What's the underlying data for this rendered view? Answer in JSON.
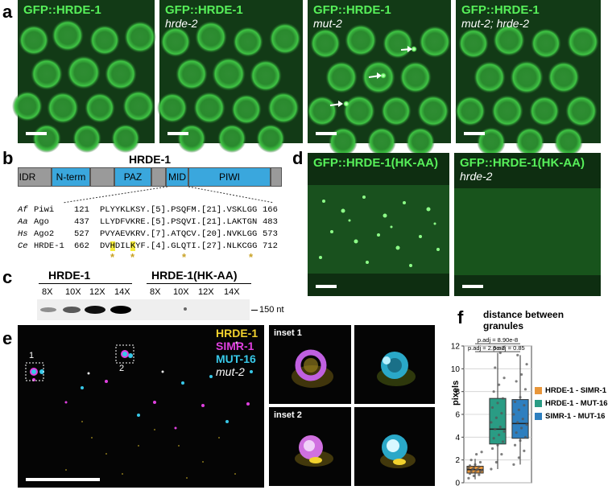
{
  "panels": {
    "a": {
      "letter": "a",
      "images": [
        {
          "line1": "GFP::HRDE-1",
          "line2": ""
        },
        {
          "line1": "GFP::HRDE-1",
          "line2": "hrde-2"
        },
        {
          "line1": "GFP::HRDE-1",
          "line2": "mut-2"
        },
        {
          "line1": "GFP::HRDE-1",
          "line2": "mut-2; hrde-2"
        }
      ]
    },
    "b": {
      "letter": "b",
      "protein_name": "HRDE-1",
      "domains": [
        "IDR",
        "N-term",
        "PAZ",
        "MID",
        "PIWI"
      ],
      "alignment": [
        {
          "species": "Af",
          "protein": "Piwi",
          "start": "121",
          "seq": "PLYYKLKSY.[5].PSQFM.[21].VSKLGG",
          "end": "166"
        },
        {
          "species": "Aa",
          "protein": "Ago",
          "start": "437",
          "seq": "LLYDFVKRE.[5].PSQVI.[21].LAKTGN",
          "end": "483"
        },
        {
          "species": "Hs",
          "protein": "Ago2",
          "start": "527",
          "seq": "PVYAEVKRV.[7].ATQCV.[20].NVKLGG",
          "end": "573"
        },
        {
          "species": "Ce",
          "protein": "HRDE-1",
          "start": "662",
          "seq_pre": "DV",
          "hl1": "H",
          "seq_mid": "DIL",
          "hl2": "K",
          "seq_post": "YF.[4].GLQTI.[27].NLKCGG",
          "end": "712"
        }
      ]
    },
    "c": {
      "letter": "c",
      "group1": "HRDE-1",
      "group2": "HRDE-1(HK-AA)",
      "lanes": [
        "8X",
        "10X",
        "12X",
        "14X",
        "8X",
        "10X",
        "12X",
        "14X"
      ],
      "marker": "150 nt"
    },
    "d": {
      "letter": "d",
      "images": [
        {
          "line1": "GFP::HRDE-1(HK-AA)",
          "line2": ""
        },
        {
          "line1": "GFP::HRDE-1(HK-AA)",
          "line2": "hrde-2"
        }
      ]
    },
    "e": {
      "letter": "e",
      "channels": [
        "HRDE-1",
        "SIMR-1",
        "MUT-16"
      ],
      "genotype": "mut-2",
      "box_labels": [
        "1",
        "2"
      ],
      "insets": [
        "inset 1",
        "inset 2"
      ]
    },
    "f": {
      "letter": "f"
    }
  },
  "colors": {
    "gfp": "#57f05a",
    "hrde1": "#f2d22e",
    "simr1": "#e040e0",
    "mut16": "#38c8e8",
    "domain_fill": "#3aa7dd",
    "highlight": "#f5ec3a"
  },
  "chart_data": {
    "type": "box",
    "title": "distance between granules",
    "ylabel": "pixels",
    "ylim": [
      0,
      12
    ],
    "yticks": [
      0,
      2,
      4,
      6,
      8,
      10,
      12
    ],
    "grid": true,
    "legend_position": "right",
    "series": [
      {
        "name": "HRDE-1 - SIMR-1",
        "color": "#e8963a",
        "q1": 0.85,
        "median": 1.15,
        "q3": 1.45,
        "whisker_low": 0.3,
        "whisker_high": 2.1,
        "points": [
          0.4,
          0.6,
          0.7,
          0.8,
          0.9,
          1.0,
          1.0,
          1.1,
          1.1,
          1.2,
          1.2,
          1.3,
          1.3,
          1.4,
          1.5,
          1.6,
          1.8,
          2.0,
          2.5,
          2.7
        ]
      },
      {
        "name": "HRDE-1 - MUT-16",
        "color": "#2a9c84",
        "q1": 3.4,
        "median": 4.7,
        "q3": 7.4,
        "whisker_low": 1.2,
        "whisker_high": 11.4,
        "points": [
          1.2,
          1.8,
          2.5,
          3.0,
          3.3,
          3.6,
          3.9,
          4.2,
          4.5,
          4.7,
          4.9,
          5.3,
          5.7,
          6.1,
          6.6,
          7.0,
          7.4,
          8.0,
          8.6,
          9.2,
          10.1,
          11.4
        ]
      },
      {
        "name": "SIMR-1 - MUT-16",
        "color": "#2e7fbf",
        "q1": 3.9,
        "median": 5.2,
        "q3": 7.3,
        "whisker_low": 1.6,
        "whisker_high": 11.2,
        "points": [
          1.6,
          2.2,
          2.8,
          3.3,
          3.7,
          4.0,
          4.4,
          4.8,
          5.1,
          5.3,
          5.6,
          6.0,
          6.4,
          6.8,
          7.1,
          7.5,
          8.2,
          8.9,
          9.5,
          10.4,
          11.2
        ]
      }
    ],
    "annotations": [
      {
        "text": "p.adj = 8.90e-8",
        "from": 0,
        "to": 2,
        "y": 12.2
      },
      {
        "text": "p.adj = 2.6e-7",
        "from": 0,
        "to": 1,
        "y": 11.5
      },
      {
        "text": "p.adj = 0.85",
        "from": 1,
        "to": 2,
        "y": 11.5
      }
    ]
  }
}
